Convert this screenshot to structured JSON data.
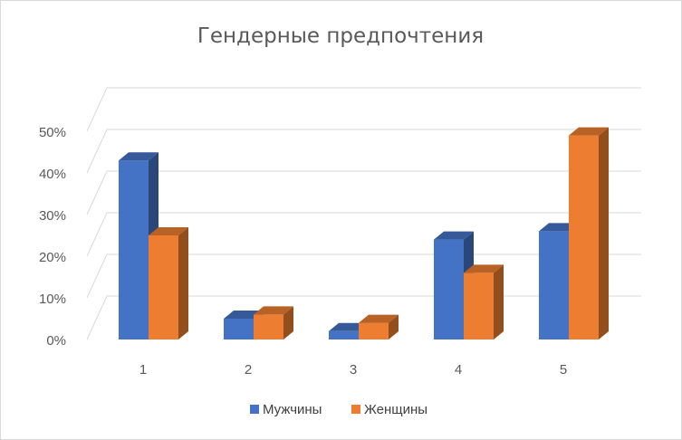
{
  "chart_data": {
    "type": "bar",
    "title": "Гендерные предпочтения",
    "xlabel": "",
    "ylabel": "",
    "categories": [
      "1",
      "2",
      "3",
      "4",
      "5"
    ],
    "series": [
      {
        "name": "Мужчины",
        "values": [
          43,
          5,
          2,
          24,
          26
        ],
        "color": "#4472C4"
      },
      {
        "name": "Женщины",
        "values": [
          25,
          6,
          4,
          16,
          49
        ],
        "color": "#ED7D31"
      }
    ],
    "ylim": [
      0,
      50
    ],
    "yticks": [
      "0%",
      "10%",
      "20%",
      "30%",
      "40%",
      "50%"
    ],
    "grid": true,
    "legend": "bottom"
  }
}
